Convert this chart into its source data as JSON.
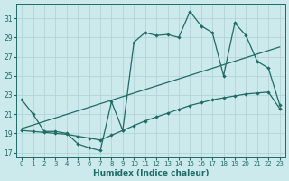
{
  "xlabel": "Humidex (Indice chaleur)",
  "bg_color": "#cce9ec",
  "grid_color": "#afd0d5",
  "line_color": "#1e6b65",
  "xlim": [
    -0.5,
    23.5
  ],
  "ylim": [
    16.5,
    32.5
  ],
  "xticks": [
    0,
    1,
    2,
    3,
    4,
    5,
    6,
    7,
    8,
    9,
    10,
    11,
    12,
    13,
    14,
    15,
    16,
    17,
    18,
    19,
    20,
    21,
    22,
    23
  ],
  "yticks": [
    17,
    19,
    21,
    23,
    25,
    27,
    29,
    31
  ],
  "line1_x": [
    0,
    1,
    2,
    3,
    4,
    5,
    6,
    7,
    8,
    9,
    10,
    11,
    12,
    13,
    14,
    15,
    16,
    17,
    18,
    19,
    20,
    21,
    22,
    23
  ],
  "line1_y": [
    22.5,
    21.0,
    19.2,
    19.2,
    19.0,
    17.9,
    17.5,
    17.2,
    22.3,
    19.3,
    28.5,
    29.5,
    29.2,
    29.3,
    29.0,
    31.7,
    30.2,
    29.5,
    25.0,
    30.5,
    29.2,
    26.5,
    25.8,
    22.0
  ],
  "line2_x": [
    0,
    1,
    2,
    3,
    4,
    5,
    6,
    7,
    8,
    9,
    10,
    11,
    12,
    13,
    14,
    15,
    16,
    17,
    18,
    19,
    20,
    21,
    22,
    23
  ],
  "line2_y": [
    19.3,
    19.2,
    19.1,
    19.0,
    18.9,
    18.7,
    18.5,
    18.3,
    18.8,
    19.3,
    19.8,
    20.3,
    20.7,
    21.1,
    21.5,
    21.9,
    22.2,
    22.5,
    22.7,
    22.9,
    23.1,
    23.2,
    23.3,
    21.6
  ],
  "line3_x": [
    0,
    23
  ],
  "line3_y": [
    19.5,
    28.0
  ]
}
